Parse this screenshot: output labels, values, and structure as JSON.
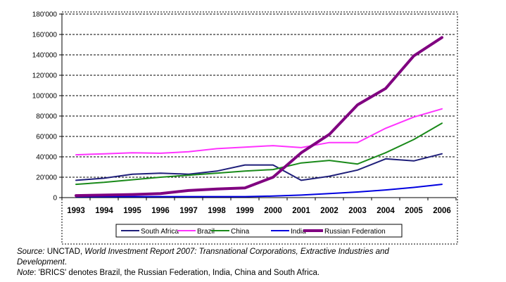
{
  "chart_data": {
    "type": "line",
    "title": "",
    "xlabel": "",
    "ylabel": "",
    "x": [
      1993,
      1994,
      1995,
      1996,
      1997,
      1998,
      1999,
      2000,
      2001,
      2002,
      2003,
      2004,
      2005,
      2006
    ],
    "ylim": [
      0,
      180000
    ],
    "y_ticks": [
      "0",
      "20'000",
      "40'000",
      "60'000",
      "80'000",
      "100'000",
      "120'000",
      "140'000",
      "160'000",
      "180'000"
    ],
    "y_tick_values": [
      0,
      20000,
      40000,
      60000,
      80000,
      100000,
      120000,
      140000,
      160000,
      180000
    ],
    "grid": "dashed horizontal",
    "legend_position": "bottom",
    "series": [
      {
        "name": "South Africa",
        "color": "#1f1f7a",
        "values": [
          17000,
          19000,
          23000,
          24000,
          23000,
          26000,
          32000,
          32000,
          17000,
          21000,
          27000,
          38000,
          36000,
          43000
        ]
      },
      {
        "name": "Brazil",
        "color": "#ff33ff",
        "values": [
          42000,
          43000,
          44000,
          43500,
          45000,
          48000,
          49500,
          51000,
          49000,
          54000,
          54000,
          68000,
          79000,
          87000
        ]
      },
      {
        "name": "China",
        "color": "#1a8a1a",
        "values": [
          13000,
          15000,
          17500,
          20000,
          22000,
          24000,
          26000,
          27500,
          34000,
          36500,
          33000,
          44000,
          57000,
          73000
        ]
      },
      {
        "name": "India",
        "color": "#0000e0",
        "values": [
          1000,
          1000,
          1000,
          1000,
          1000,
          1000,
          1000,
          1500,
          2500,
          4000,
          5500,
          7500,
          10000,
          13000
        ]
      },
      {
        "name": "Russian Federation",
        "color": "#800080",
        "values": [
          2000,
          2500,
          3000,
          4000,
          7000,
          8500,
          9500,
          20000,
          44000,
          62000,
          91000,
          107000,
          139000,
          157000
        ]
      }
    ]
  },
  "source": {
    "prefix": "Source:",
    "org": " UNCTAD, ",
    "title": "World Investment Report 2007: Transnational Corporations, Extractive Industries and",
    "title2": "Development",
    "end": "."
  },
  "note": {
    "prefix": "Note",
    "text": ": 'BRICS' denotes Brazil, the Russian Federation, India, China and South Africa."
  }
}
